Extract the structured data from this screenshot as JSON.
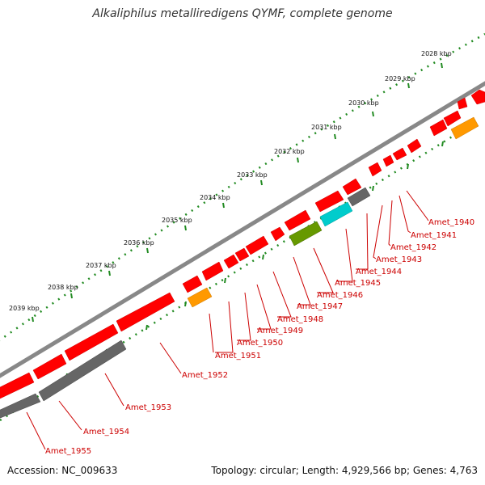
{
  "title": "Alkaliphilus metalliredigens QYMF, complete genome",
  "footer": {
    "accession": "Accession: NC_009633",
    "summary": "Topology: circular; Length: 4,929,566 bp; Genes: 4,763"
  },
  "ruler_labels": [
    "2028 kbp",
    "2029 kbp",
    "2030 kbp",
    "2031 kbp",
    "2032 kbp",
    "2033 kbp",
    "2034 kbp",
    "2035 kbp",
    "2036 kbp",
    "2037 kbp",
    "2038 kbp",
    "2039 kbp"
  ],
  "gene_labels": [
    "Amet_1940",
    "Amet_1941",
    "Amet_1942",
    "Amet_1943",
    "Amet_1944",
    "Amet_1945",
    "Amet_1946",
    "Amet_1947",
    "Amet_1948",
    "Amet_1949",
    "Amet_1950",
    "Amet_1951",
    "Amet_1952",
    "Amet_1953",
    "Amet_1954",
    "Amet_1955"
  ],
  "colors": {
    "cds": "#ff0000",
    "gene": "#666666",
    "trna": "#ff9900",
    "rrna": "#00cccc",
    "misc": "#669900",
    "backbone": "#888888",
    "ruler": "#228b22",
    "label": "#cc0000"
  }
}
